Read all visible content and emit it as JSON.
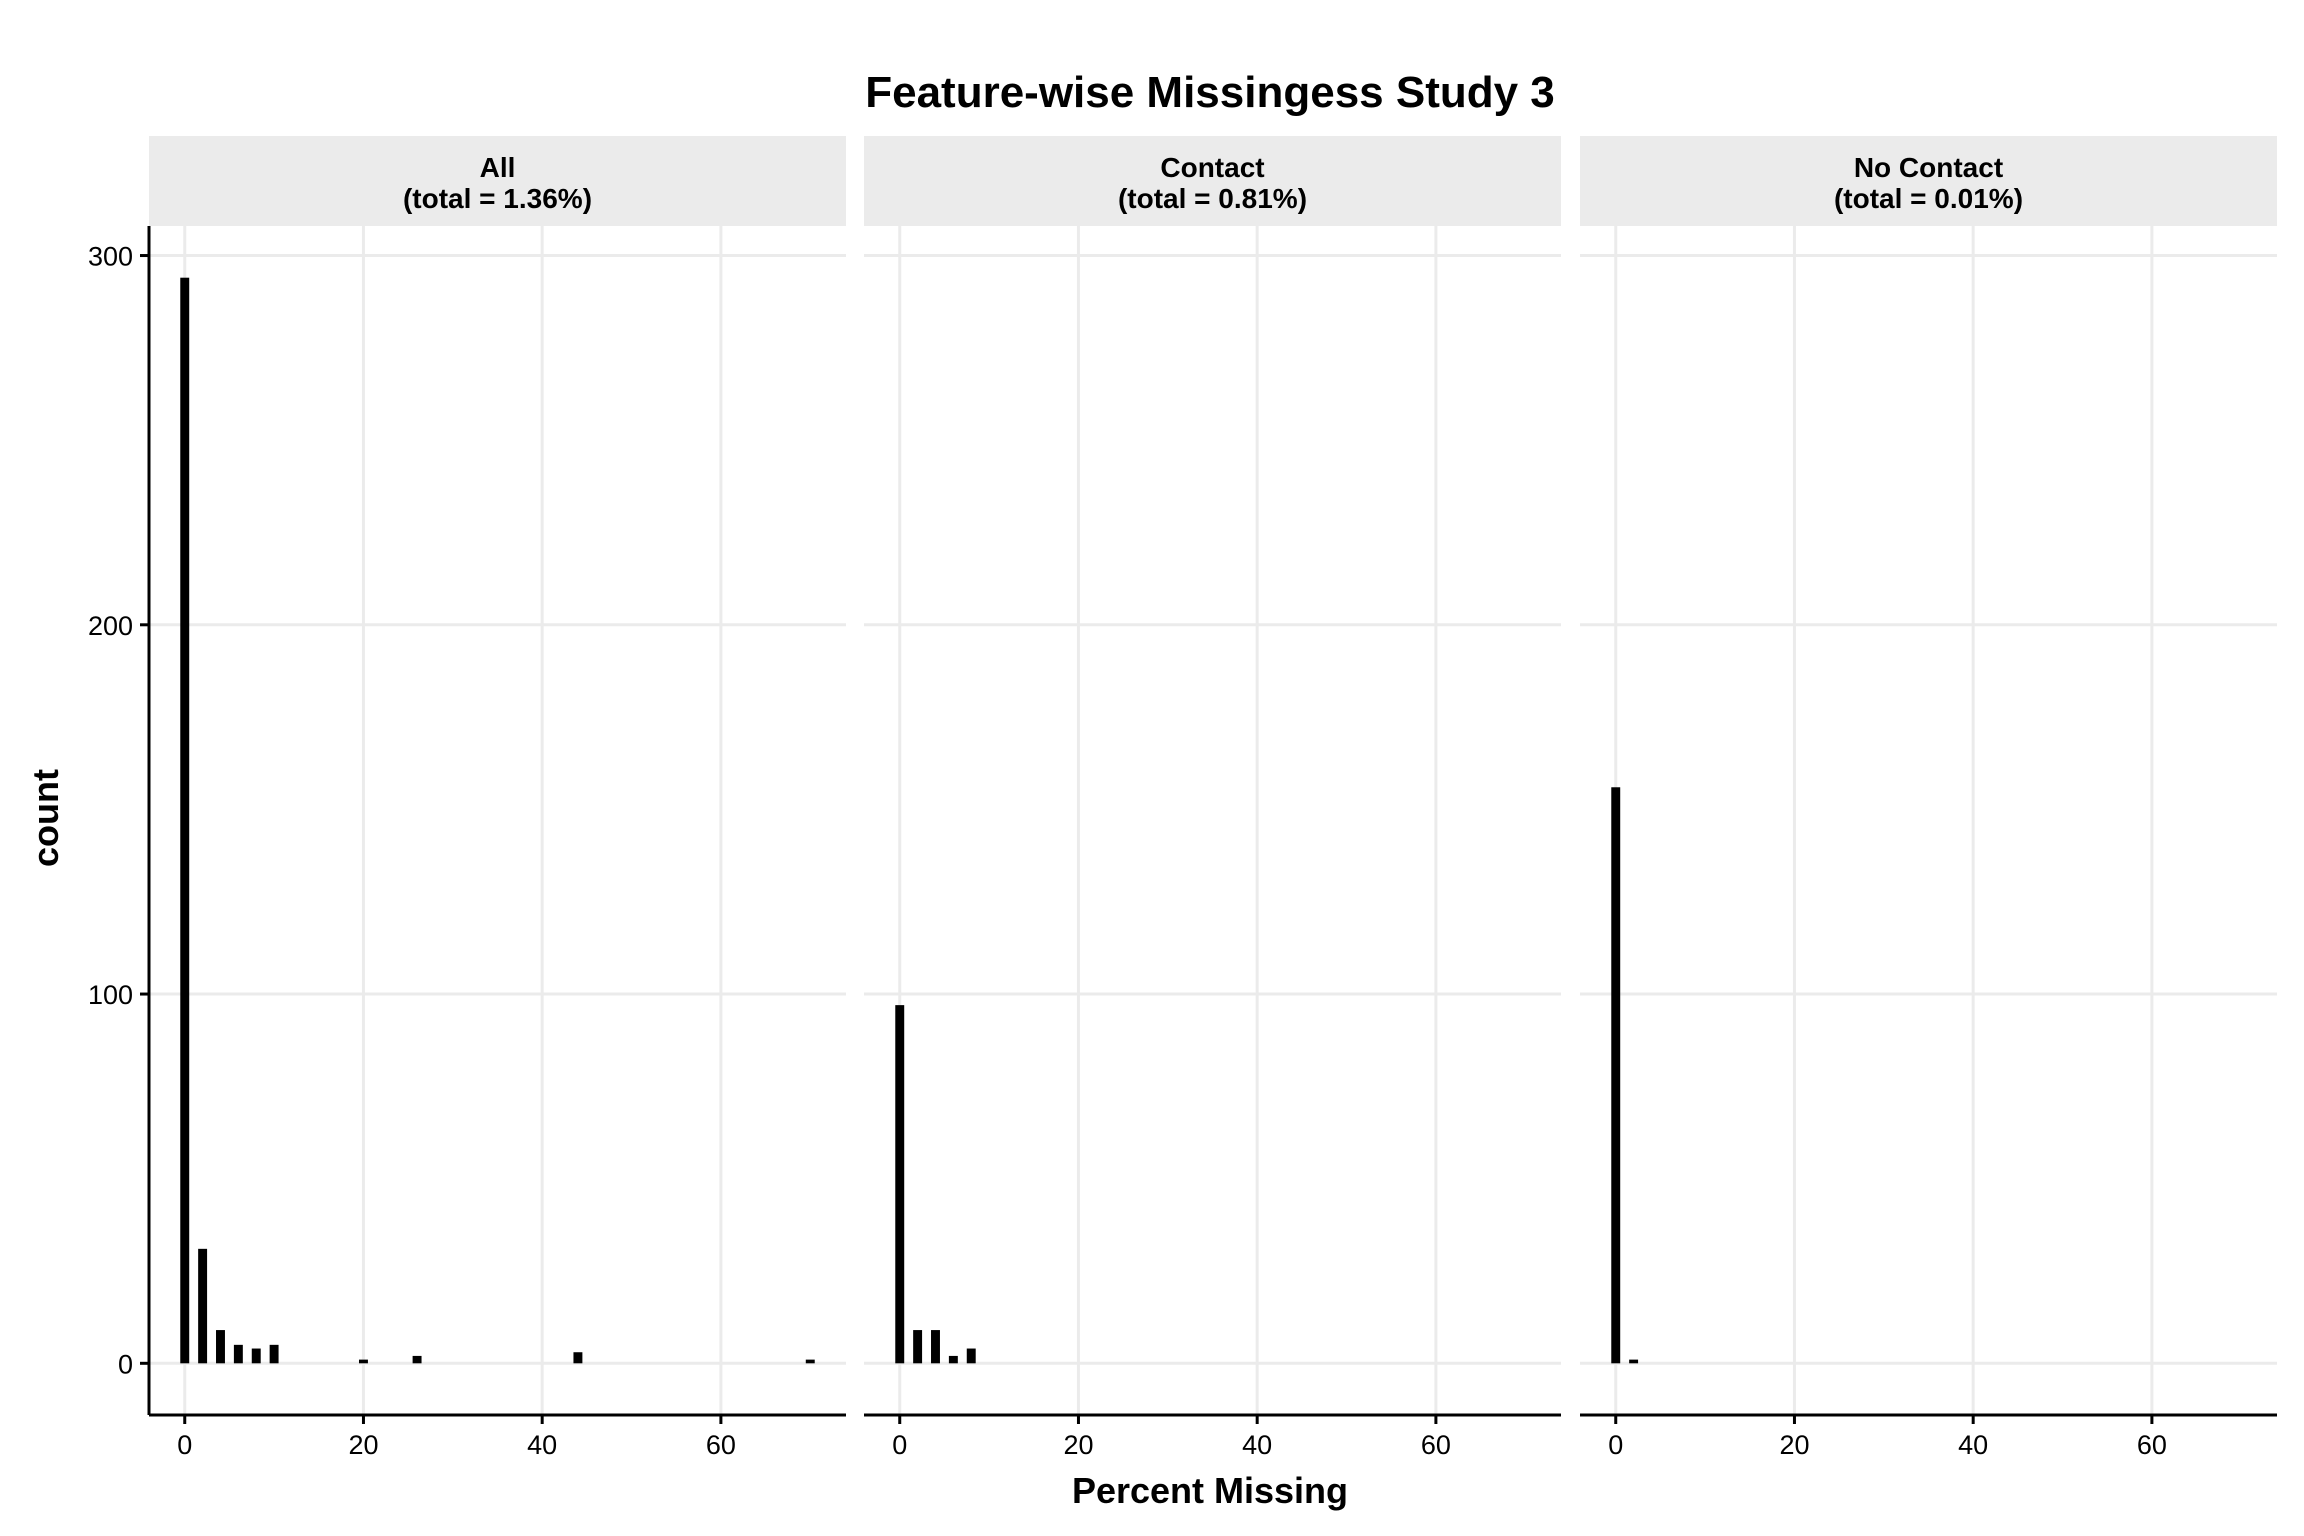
{
  "chart_data": {
    "type": "bar",
    "title": "Feature-wise Missingess Study 3",
    "xlabel": "Percent Missing",
    "ylabel": "count",
    "xlim": [
      -4,
      74
    ],
    "ylim": [
      -14,
      308
    ],
    "x_ticks": [
      0,
      20,
      40,
      60
    ],
    "y_ticks": [
      0,
      100,
      200,
      300
    ],
    "bar_width": 1.0,
    "grid": true,
    "bar_color": "#000000",
    "grid_color": "#ebebeb",
    "strip_color": "#ebebeb",
    "panels": [
      {
        "label": "All",
        "sublabel": "(total = 1.36%)",
        "x": [
          0,
          2,
          4,
          6,
          8,
          10,
          20,
          26,
          44,
          70
        ],
        "values": [
          294,
          31,
          9,
          5,
          4,
          5,
          1,
          2,
          3,
          1
        ]
      },
      {
        "label": "Contact",
        "sublabel": "(total = 0.81%)",
        "x": [
          0,
          2,
          4,
          6,
          8
        ],
        "values": [
          97,
          9,
          9,
          2,
          4
        ]
      },
      {
        "label": "No Contact",
        "sublabel": "(total = 0.01%)",
        "x": [
          0,
          2
        ],
        "values": [
          156,
          1
        ]
      }
    ]
  }
}
